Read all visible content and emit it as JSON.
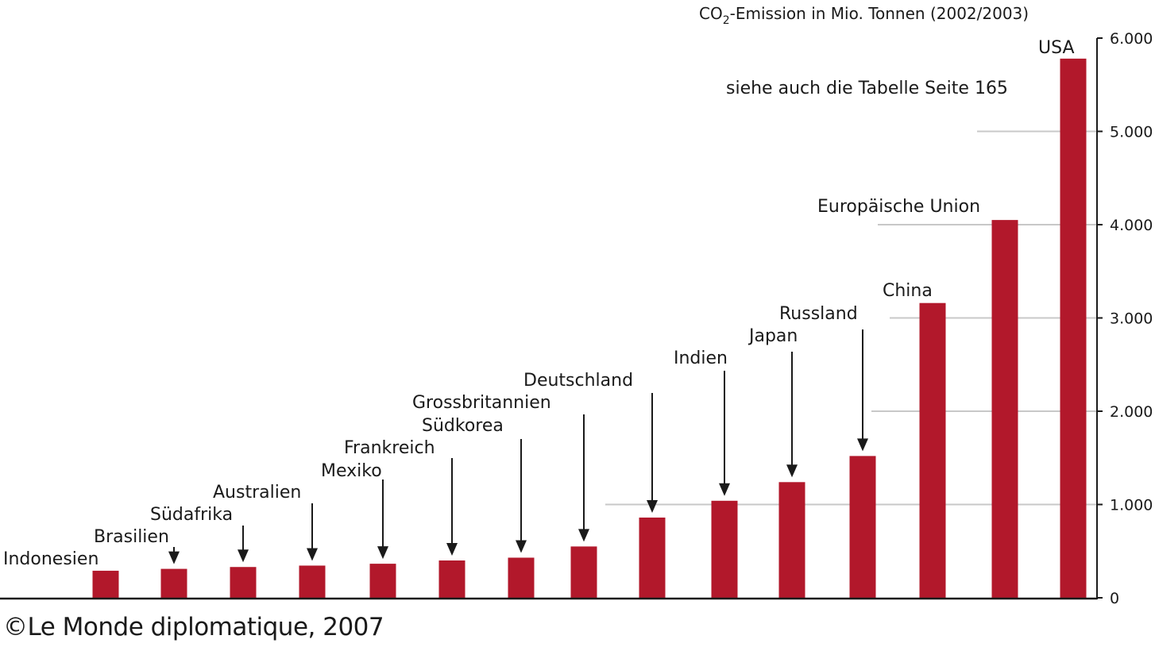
{
  "chart_data": {
    "type": "bar",
    "title_prefix": "CO",
    "title_subscript": "2",
    "title_suffix": "-Emission in Mio. Tonnen (2002/2003)",
    "note": "siehe auch die Tabelle Seite 165",
    "ylabel": "CO2-Emission in Mio. Tonnen",
    "ylim": [
      0,
      6000
    ],
    "yticks": [
      0,
      1000,
      2000,
      3000,
      4000,
      5000,
      6000
    ],
    "ytick_labels": [
      "0",
      "1.000",
      "2.000",
      "3.000",
      "4.000",
      "5.000",
      "6.000"
    ],
    "categories": [
      "Indonesien",
      "Brasilien",
      "Südafrika",
      "Australien",
      "Mexiko",
      "Frankreich",
      "Südkorea",
      "Grossbritannien",
      "Deutschland",
      "Indien",
      "Japan",
      "Russland",
      "China",
      "Europäische Union",
      "USA"
    ],
    "values": [
      290,
      310,
      330,
      345,
      365,
      400,
      430,
      550,
      860,
      1040,
      1240,
      1520,
      3160,
      4050,
      5780
    ],
    "bar_color": "#b2182b",
    "grid": true,
    "axis_side": "right"
  },
  "credit": "©Le Monde diplomatique, 2007"
}
